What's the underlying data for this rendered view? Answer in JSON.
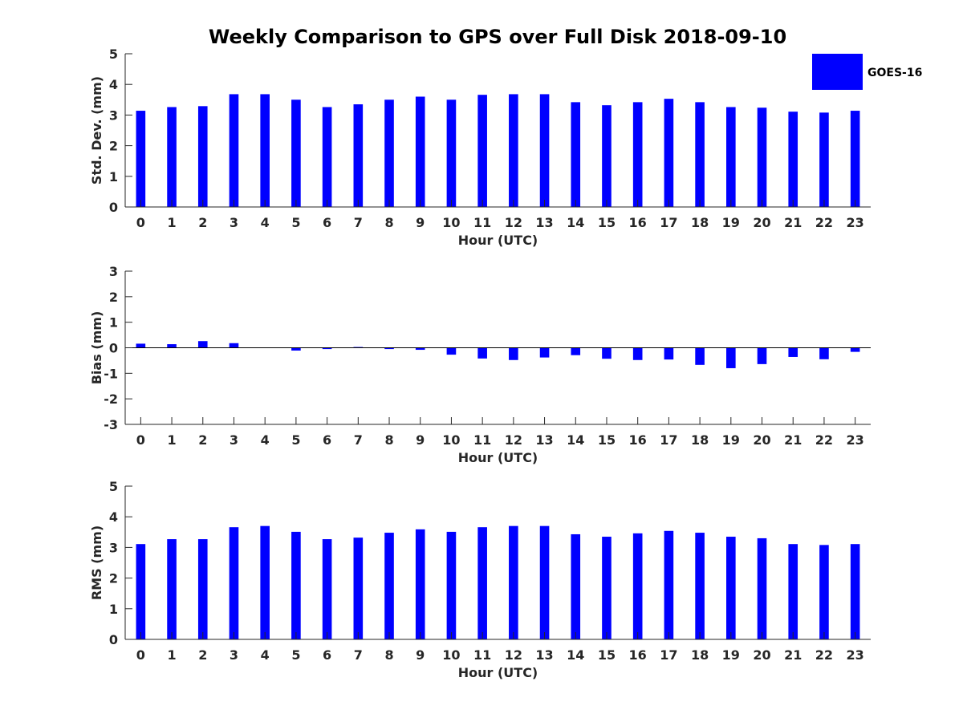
{
  "figure_title": "Weekly Comparison to GPS over Full Disk 2018-09-10",
  "legend": {
    "label": "GOES-16",
    "color": "#0000ff"
  },
  "chart_data": [
    {
      "type": "bar",
      "title": "Weekly Comparison to GPS over Full Disk 2018-09-10",
      "xlabel": "Hour (UTC)",
      "ylabel": "Std. Dev. (mm)",
      "categories": [
        "0",
        "1",
        "2",
        "3",
        "4",
        "5",
        "6",
        "7",
        "8",
        "9",
        "10",
        "11",
        "12",
        "13",
        "14",
        "15",
        "16",
        "17",
        "18",
        "19",
        "20",
        "21",
        "22",
        "23"
      ],
      "series": [
        {
          "name": "GOES-16",
          "color": "#0000ff",
          "values": [
            3.14,
            3.26,
            3.29,
            3.68,
            3.68,
            3.5,
            3.26,
            3.35,
            3.5,
            3.6,
            3.5,
            3.66,
            3.68,
            3.68,
            3.42,
            3.32,
            3.42,
            3.53,
            3.42,
            3.26,
            3.24,
            3.11,
            3.08,
            3.14
          ]
        }
      ],
      "ylim": [
        0,
        5
      ],
      "yticks": [
        0,
        1,
        2,
        3,
        4,
        5
      ],
      "xlim": [
        -0.5,
        23.5
      ]
    },
    {
      "type": "bar",
      "xlabel": "Hour (UTC)",
      "ylabel": "Bias (mm)",
      "categories": [
        "0",
        "1",
        "2",
        "3",
        "4",
        "5",
        "6",
        "7",
        "8",
        "9",
        "10",
        "11",
        "12",
        "13",
        "14",
        "15",
        "16",
        "17",
        "18",
        "19",
        "20",
        "21",
        "22",
        "23"
      ],
      "series": [
        {
          "name": "GOES-16",
          "color": "#0000ff",
          "values": [
            0.16,
            0.14,
            0.26,
            0.18,
            0.0,
            -0.11,
            -0.05,
            0.03,
            -0.05,
            -0.08,
            -0.27,
            -0.42,
            -0.48,
            -0.38,
            -0.29,
            -0.43,
            -0.48,
            -0.46,
            -0.67,
            -0.8,
            -0.64,
            -0.36,
            -0.45,
            -0.16
          ]
        }
      ],
      "ylim": [
        -3,
        3
      ],
      "yticks": [
        -3,
        -2,
        -1,
        0,
        1,
        2,
        3
      ],
      "xlim": [
        -0.5,
        23.5
      ]
    },
    {
      "type": "bar",
      "xlabel": "Hour (UTC)",
      "ylabel": "RMS (mm)",
      "categories": [
        "0",
        "1",
        "2",
        "3",
        "4",
        "5",
        "6",
        "7",
        "8",
        "9",
        "10",
        "11",
        "12",
        "13",
        "14",
        "15",
        "16",
        "17",
        "18",
        "19",
        "20",
        "21",
        "22",
        "23"
      ],
      "series": [
        {
          "name": "GOES-16",
          "color": "#0000ff",
          "values": [
            3.11,
            3.27,
            3.27,
            3.66,
            3.7,
            3.51,
            3.27,
            3.32,
            3.48,
            3.59,
            3.51,
            3.66,
            3.7,
            3.7,
            3.43,
            3.35,
            3.46,
            3.54,
            3.48,
            3.35,
            3.3,
            3.11,
            3.08,
            3.11
          ]
        }
      ],
      "ylim": [
        0,
        5
      ],
      "yticks": [
        0,
        1,
        2,
        3,
        4,
        5
      ],
      "xlim": [
        -0.5,
        23.5
      ]
    }
  ]
}
